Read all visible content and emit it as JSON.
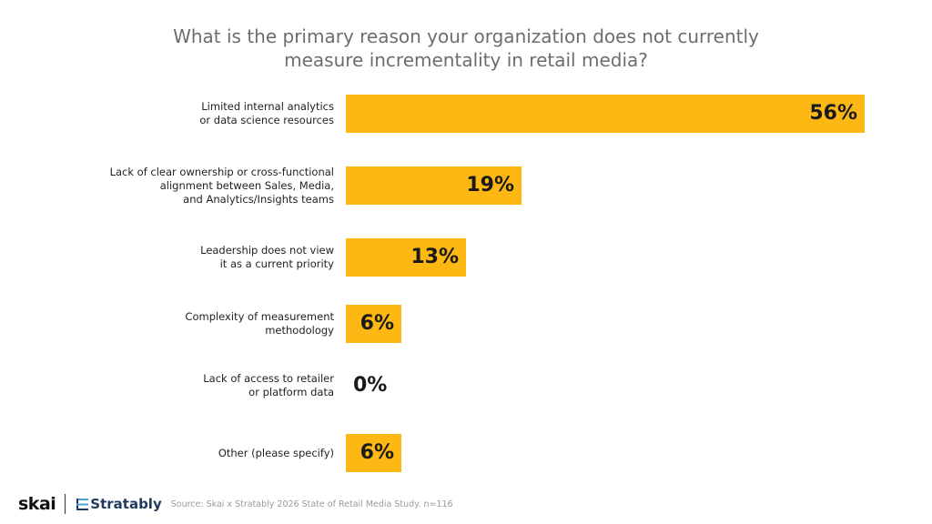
{
  "chart_data": {
    "type": "bar",
    "orientation": "horizontal",
    "title_lines": [
      "What is the primary reason your organization does not currently",
      "measure incrementality in retail media?"
    ],
    "categories": [
      [
        "Limited internal analytics",
        "or data science resources"
      ],
      [
        "Lack of clear ownership or cross-functional",
        "alignment between Sales, Media,",
        "and Analytics/Insights teams"
      ],
      [
        "Leadership does not view",
        "it as a current priority"
      ],
      [
        "Complexity of measurement",
        "methodology"
      ],
      [
        "Lack of access to retailer",
        "or platform data"
      ],
      [
        "Other (please specify)"
      ]
    ],
    "values": [
      56,
      19,
      13,
      6,
      0,
      6
    ],
    "value_labels": [
      "56%",
      "19%",
      "13%",
      "6%",
      "0%",
      "6%"
    ],
    "xlim": [
      0,
      56
    ],
    "bar_color": "#fdb813",
    "grid": false,
    "legend": "none"
  },
  "footer": {
    "brand1": "skai",
    "brand2": "Stratably",
    "source": "Source: Skai x Stratably 2026 State of Retail Media Study. n=116"
  }
}
